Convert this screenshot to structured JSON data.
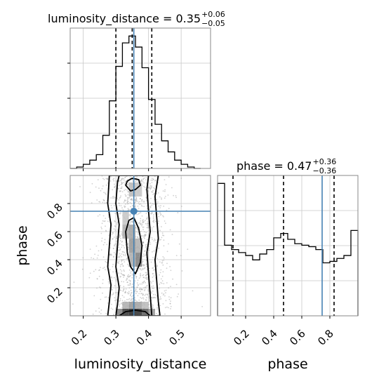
{
  "chart_data": [
    {
      "type": "histogram",
      "panel": "luminosity_distance-marginal",
      "title": {
        "text": "luminosity_distance = 0.35",
        "sup": "+0.06",
        "sub": "−0.05"
      },
      "x_range": [
        0.16,
        0.59
      ],
      "bins": [
        {
          "lo": 0.16,
          "hi": 0.18,
          "v": 0.0
        },
        {
          "lo": 0.18,
          "hi": 0.2,
          "v": 0.01
        },
        {
          "lo": 0.2,
          "hi": 0.22,
          "v": 0.03
        },
        {
          "lo": 0.22,
          "hi": 0.24,
          "v": 0.06
        },
        {
          "lo": 0.24,
          "hi": 0.26,
          "v": 0.1
        },
        {
          "lo": 0.26,
          "hi": 0.28,
          "v": 0.24
        },
        {
          "lo": 0.28,
          "hi": 0.3,
          "v": 0.49
        },
        {
          "lo": 0.3,
          "hi": 0.32,
          "v": 0.74
        },
        {
          "lo": 0.32,
          "hi": 0.34,
          "v": 0.91
        },
        {
          "lo": 0.34,
          "hi": 0.36,
          "v": 0.96
        },
        {
          "lo": 0.36,
          "hi": 0.38,
          "v": 0.88
        },
        {
          "lo": 0.38,
          "hi": 0.4,
          "v": 0.73
        },
        {
          "lo": 0.4,
          "hi": 0.42,
          "v": 0.5
        },
        {
          "lo": 0.42,
          "hi": 0.44,
          "v": 0.32
        },
        {
          "lo": 0.44,
          "hi": 0.46,
          "v": 0.2
        },
        {
          "lo": 0.46,
          "hi": 0.48,
          "v": 0.12
        },
        {
          "lo": 0.48,
          "hi": 0.5,
          "v": 0.06
        },
        {
          "lo": 0.5,
          "hi": 0.52,
          "v": 0.03
        },
        {
          "lo": 0.52,
          "hi": 0.54,
          "v": 0.01
        },
        {
          "lo": 0.54,
          "hi": 0.56,
          "v": 0.0
        }
      ],
      "quantiles": [
        0.3,
        0.35,
        0.41
      ],
      "truth": 0.355,
      "grid": true
    },
    {
      "type": "scatter-contour",
      "panel": "joint",
      "x_range": [
        0.16,
        0.59
      ],
      "y_range": [
        0.0,
        1.0
      ],
      "xlabel": "luminosity_distance",
      "ylabel": "phase",
      "xticks": [
        {
          "value": 0.2,
          "label": "0.2"
        },
        {
          "value": 0.3,
          "label": "0.3"
        },
        {
          "value": 0.4,
          "label": "0.4"
        },
        {
          "value": 0.5,
          "label": "0.5"
        }
      ],
      "yticks": [
        {
          "value": 0.2,
          "label": "0.2"
        },
        {
          "value": 0.4,
          "label": "0.4"
        },
        {
          "value": 0.6,
          "label": "0.6"
        },
        {
          "value": 0.8,
          "label": "0.8"
        }
      ],
      "truth": {
        "x": 0.355,
        "y": 0.745
      },
      "density_cells": [
        {
          "x": 0.3,
          "w": 0.02,
          "y": 0.0,
          "h": 0.05,
          "level": 0.55
        },
        {
          "x": 0.32,
          "w": 0.02,
          "y": 0.0,
          "h": 0.05,
          "level": 0.85
        },
        {
          "x": 0.34,
          "w": 0.02,
          "y": 0.0,
          "h": 0.05,
          "level": 0.95
        },
        {
          "x": 0.36,
          "w": 0.02,
          "y": 0.0,
          "h": 0.05,
          "level": 0.9
        },
        {
          "x": 0.38,
          "w": 0.02,
          "y": 0.0,
          "h": 0.05,
          "level": 0.7
        },
        {
          "x": 0.4,
          "w": 0.02,
          "y": 0.0,
          "h": 0.05,
          "level": 0.45
        },
        {
          "x": 0.32,
          "w": 0.02,
          "y": 0.05,
          "h": 0.05,
          "level": 0.35
        },
        {
          "x": 0.34,
          "w": 0.02,
          "y": 0.05,
          "h": 0.05,
          "level": 0.45
        },
        {
          "x": 0.36,
          "w": 0.02,
          "y": 0.05,
          "h": 0.05,
          "level": 0.4
        },
        {
          "x": 0.38,
          "w": 0.02,
          "y": 0.05,
          "h": 0.05,
          "level": 0.3
        },
        {
          "x": 0.34,
          "w": 0.02,
          "y": 0.35,
          "h": 0.1,
          "level": 0.35
        },
        {
          "x": 0.36,
          "w": 0.02,
          "y": 0.35,
          "h": 0.1,
          "level": 0.55
        },
        {
          "x": 0.34,
          "w": 0.02,
          "y": 0.45,
          "h": 0.1,
          "level": 0.45
        },
        {
          "x": 0.36,
          "w": 0.02,
          "y": 0.45,
          "h": 0.1,
          "level": 0.35
        },
        {
          "x": 0.32,
          "w": 0.02,
          "y": 0.55,
          "h": 0.1,
          "level": 0.35
        },
        {
          "x": 0.34,
          "w": 0.02,
          "y": 0.55,
          "h": 0.1,
          "level": 0.4
        },
        {
          "x": 0.32,
          "w": 0.02,
          "y": 0.65,
          "h": 0.1,
          "level": 0.25
        },
        {
          "x": 0.34,
          "w": 0.02,
          "y": 0.85,
          "h": 0.1,
          "level": 0.3
        },
        {
          "x": 0.36,
          "w": 0.02,
          "y": 0.85,
          "h": 0.1,
          "level": 0.25
        }
      ],
      "contours": [
        [
          [
            0.275,
            0.0
          ],
          [
            0.28,
            0.1
          ],
          [
            0.285,
            0.22
          ],
          [
            0.275,
            0.35
          ],
          [
            0.28,
            0.5
          ],
          [
            0.285,
            0.65
          ],
          [
            0.275,
            0.8
          ],
          [
            0.28,
            1.0
          ],
          [
            0.43,
            1.0
          ],
          [
            0.42,
            0.85
          ],
          [
            0.425,
            0.7
          ],
          [
            0.43,
            0.55
          ],
          [
            0.42,
            0.4
          ],
          [
            0.425,
            0.25
          ],
          [
            0.43,
            0.1
          ],
          [
            0.435,
            0.0
          ]
        ],
        [
          [
            0.3,
            0.0
          ],
          [
            0.305,
            0.08
          ],
          [
            0.31,
            0.2
          ],
          [
            0.3,
            0.35
          ],
          [
            0.305,
            0.5
          ],
          [
            0.31,
            0.65
          ],
          [
            0.3,
            0.8
          ],
          [
            0.305,
            0.95
          ],
          [
            0.31,
            1.0
          ],
          [
            0.4,
            1.0
          ],
          [
            0.395,
            0.9
          ],
          [
            0.4,
            0.75
          ],
          [
            0.405,
            0.6
          ],
          [
            0.395,
            0.45
          ],
          [
            0.4,
            0.3
          ],
          [
            0.405,
            0.15
          ],
          [
            0.41,
            0.0
          ]
        ],
        [
          [
            0.33,
            0.6
          ],
          [
            0.335,
            0.45
          ],
          [
            0.345,
            0.35
          ],
          [
            0.36,
            0.3
          ],
          [
            0.375,
            0.38
          ],
          [
            0.38,
            0.5
          ],
          [
            0.37,
            0.62
          ],
          [
            0.355,
            0.7
          ],
          [
            0.34,
            0.68
          ]
        ],
        [
          [
            0.31,
            0.0
          ],
          [
            0.33,
            0.03
          ],
          [
            0.36,
            0.04
          ],
          [
            0.39,
            0.03
          ],
          [
            0.405,
            0.0
          ]
        ],
        [
          [
            0.33,
            0.93
          ],
          [
            0.345,
            0.89
          ],
          [
            0.36,
            0.9
          ],
          [
            0.375,
            0.93
          ],
          [
            0.37,
            0.97
          ],
          [
            0.35,
            0.98
          ],
          [
            0.335,
            0.96
          ]
        ]
      ],
      "grid": true
    },
    {
      "type": "histogram",
      "panel": "phase-marginal",
      "title": {
        "text": "phase = 0.47",
        "sup": "+0.36",
        "sub": "−0.36"
      },
      "x_range": [
        0.0,
        1.0
      ],
      "xlabel": "phase",
      "xticks": [
        {
          "value": 0.2,
          "label": "0.2"
        },
        {
          "value": 0.4,
          "label": "0.4"
        },
        {
          "value": 0.6,
          "label": "0.6"
        },
        {
          "value": 0.8,
          "label": "0.8"
        }
      ],
      "bins": [
        {
          "lo": 0.0,
          "hi": 0.05,
          "v": 0.9
        },
        {
          "lo": 0.05,
          "hi": 0.1,
          "v": 0.48
        },
        {
          "lo": 0.1,
          "hi": 0.15,
          "v": 0.45
        },
        {
          "lo": 0.15,
          "hi": 0.2,
          "v": 0.43
        },
        {
          "lo": 0.2,
          "hi": 0.25,
          "v": 0.41
        },
        {
          "lo": 0.25,
          "hi": 0.3,
          "v": 0.38
        },
        {
          "lo": 0.3,
          "hi": 0.35,
          "v": 0.42
        },
        {
          "lo": 0.35,
          "hi": 0.4,
          "v": 0.45
        },
        {
          "lo": 0.4,
          "hi": 0.45,
          "v": 0.53
        },
        {
          "lo": 0.45,
          "hi": 0.5,
          "v": 0.56
        },
        {
          "lo": 0.5,
          "hi": 0.55,
          "v": 0.52
        },
        {
          "lo": 0.55,
          "hi": 0.6,
          "v": 0.49
        },
        {
          "lo": 0.6,
          "hi": 0.65,
          "v": 0.48
        },
        {
          "lo": 0.65,
          "hi": 0.7,
          "v": 0.47
        },
        {
          "lo": 0.7,
          "hi": 0.75,
          "v": 0.45
        },
        {
          "lo": 0.75,
          "hi": 0.8,
          "v": 0.36
        },
        {
          "lo": 0.8,
          "hi": 0.85,
          "v": 0.37
        },
        {
          "lo": 0.85,
          "hi": 0.9,
          "v": 0.39
        },
        {
          "lo": 0.9,
          "hi": 0.95,
          "v": 0.41
        },
        {
          "lo": 0.95,
          "hi": 1.0,
          "v": 0.58
        }
      ],
      "quantiles": [
        0.11,
        0.47,
        0.83
      ],
      "truth": 0.745,
      "grid": true
    }
  ],
  "colors": {
    "truth": "#4682b4",
    "line": "#000000",
    "grid": "#c8c8c8",
    "spine": "#888888",
    "points": "#9a9a9a"
  }
}
